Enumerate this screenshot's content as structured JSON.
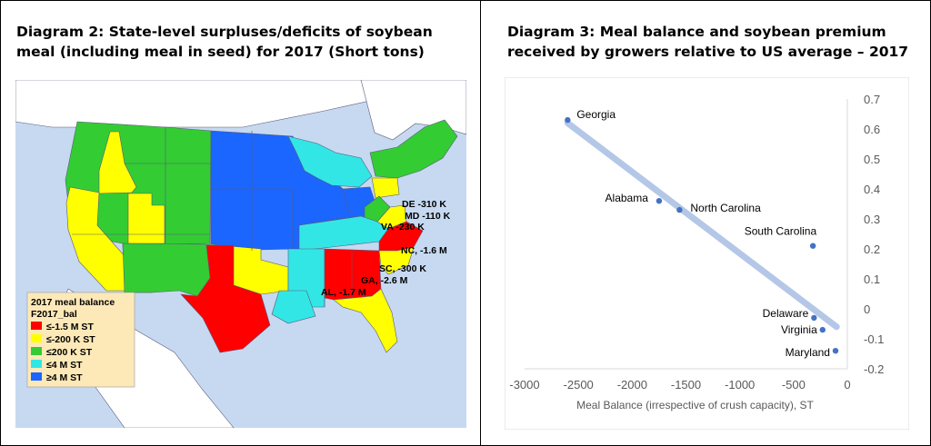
{
  "left_panel": {
    "title_line1": "Diagram 2: State-level surpluses/deficits of soybean",
    "title_line2": "meal (including meal in seed) for 2017 (Short tons)",
    "colors": {
      "deficit_large": "#ff0000",
      "deficit_small": "#ffff00",
      "balanced": "#33cc33",
      "surplus_small": "#33e6e6",
      "surplus_large": "#1a66ff",
      "water": "#c6d9f1",
      "land_other": "#ffffff"
    },
    "legend": {
      "title": "2017 meal balance",
      "subtitle": "F2017_bal",
      "items": [
        {
          "label": "≤-1.5 M ST",
          "color": "#ff0000"
        },
        {
          "label": "≤-200 K ST",
          "color": "#ffff00"
        },
        {
          "label": "≤200 K ST",
          "color": "#33cc33"
        },
        {
          "label": "≤4 M ST",
          "color": "#33e6e6"
        },
        {
          "label": "≥4 M ST",
          "color": "#1a66ff"
        }
      ]
    },
    "annotations": [
      {
        "text": "DE -310 K"
      },
      {
        "text": "MD -110 K"
      },
      {
        "text": "VA -230 K"
      },
      {
        "text": "NC, -1.6 M"
      },
      {
        "text": "SC, -300 K"
      },
      {
        "text": "GA, -2.6 M"
      },
      {
        "text": "AL, -1.7 M"
      }
    ]
  },
  "chart_data": {
    "type": "scatter",
    "title": "Diagram 3: Meal balance and soybean premium received by growers relative to US average – 2017",
    "title_line1": "Diagram 3: Meal balance and soybean premium",
    "title_line2": "received by growers relative to US average – 2017",
    "xlabel": "Meal Balance (irrespective of crush capacity), ST",
    "ylabel": "",
    "xlim": [
      -3000,
      0
    ],
    "ylim": [
      -0.2,
      0.7
    ],
    "x_ticks": [
      -3000,
      -2500,
      -2000,
      -1500,
      -1000,
      -500,
      0
    ],
    "y_ticks": [
      0.7,
      0.6,
      0.5,
      0.4,
      0.3,
      0.2,
      0.1,
      0,
      -0.1,
      -0.2
    ],
    "grid": false,
    "y_axis_side": "right",
    "point_color": "#4472c4",
    "trendline_color": "#b4c7e7",
    "trendline": {
      "x": [
        -2600,
        -100
      ],
      "y": [
        0.62,
        -0.06
      ]
    },
    "points": [
      {
        "label": "Georgia",
        "x": -2600,
        "y": 0.63
      },
      {
        "label": "Alabama",
        "x": -1750,
        "y": 0.36
      },
      {
        "label": "North Carolina",
        "x": -1560,
        "y": 0.33
      },
      {
        "label": "South Carolina",
        "x": -320,
        "y": 0.21
      },
      {
        "label": "Delaware",
        "x": -310,
        "y": -0.03
      },
      {
        "label": "Virginia",
        "x": -230,
        "y": -0.07
      },
      {
        "label": "Maryland",
        "x": -110,
        "y": -0.14
      }
    ]
  }
}
